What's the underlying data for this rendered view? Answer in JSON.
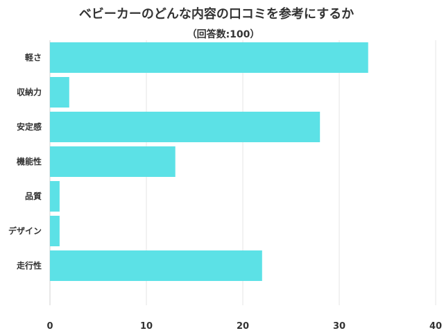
{
  "chart_data": {
    "type": "bar",
    "orientation": "horizontal",
    "title": "ベビーカーのどんな内容の口コミを参考にするか",
    "subtitle": "（回答数:100）",
    "categories": [
      "軽さ",
      "収納力",
      "安定感",
      "機能性",
      "品質",
      "デザイン",
      "走行性"
    ],
    "values": [
      33,
      2,
      28,
      13,
      1,
      1,
      22
    ],
    "xlim": [
      0,
      40
    ],
    "x_ticks": [
      0,
      10,
      20,
      30,
      40
    ],
    "grid": true,
    "bar_color": "#5ce1e6",
    "grid_color": "#e6e6e6"
  }
}
